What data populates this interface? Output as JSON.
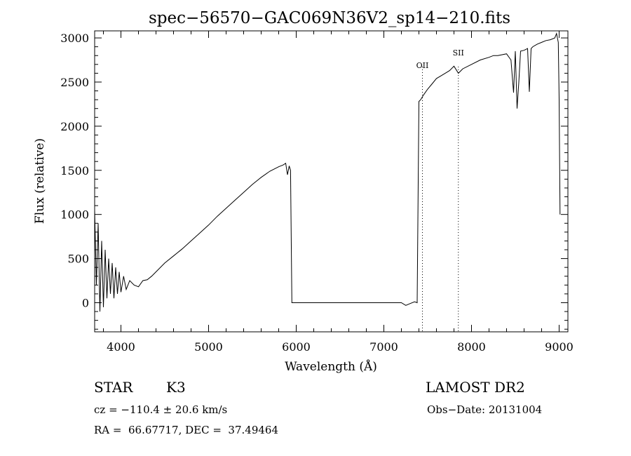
{
  "chart_data": {
    "type": "line",
    "title": "spec−56570−GAC069N36V2_sp14−210.fits",
    "xlabel": "Wavelength (Å)",
    "ylabel": "Flux (relative)",
    "xlim": [
      3700,
      9100
    ],
    "ylim": [
      -330,
      3080
    ],
    "xticks": [
      4000,
      5000,
      6000,
      7000,
      8000,
      9000
    ],
    "yticks": [
      0,
      500,
      1000,
      1500,
      2000,
      2500,
      3000
    ],
    "grid": false,
    "series": [
      {
        "x": [
          3700,
          3720,
          3740,
          3760,
          3780,
          3800,
          3820,
          3840,
          3860,
          3880,
          3900,
          3920,
          3940,
          3960,
          3980,
          4000,
          4030,
          4060,
          4100,
          4150,
          4200,
          4250,
          4300,
          4350,
          4400,
          4500,
          4600,
          4700,
          4800,
          4900,
          5000,
          5100,
          5200,
          5300,
          5400,
          5500,
          5600,
          5700,
          5800,
          5850,
          5880,
          5900,
          5920,
          5935,
          5950,
          6500,
          7000,
          7200,
          7250,
          7300,
          7350,
          7380,
          7400,
          7420,
          7450,
          7500,
          7550,
          7600,
          7650,
          7700,
          7750,
          7800,
          7850,
          7900,
          8000,
          8100,
          8200,
          8250,
          8300,
          8400,
          8450,
          8480,
          8500,
          8520,
          8540,
          8560,
          8600,
          8640,
          8660,
          8680,
          8700,
          8750,
          8800,
          8850,
          8900,
          8950,
          8970,
          8990,
          9000,
          9010
        ],
        "y": [
          1050,
          200,
          900,
          -100,
          700,
          -50,
          600,
          50,
          500,
          100,
          450,
          50,
          400,
          100,
          350,
          120,
          300,
          150,
          250,
          200,
          180,
          250,
          260,
          300,
          350,
          450,
          530,
          610,
          700,
          790,
          880,
          980,
          1070,
          1160,
          1250,
          1340,
          1420,
          1490,
          1540,
          1560,
          1580,
          1450,
          1550,
          1500,
          0,
          0,
          0,
          0,
          -30,
          -10,
          10,
          0,
          2280,
          2300,
          2350,
          2420,
          2480,
          2540,
          2570,
          2600,
          2630,
          2680,
          2600,
          2650,
          2700,
          2750,
          2780,
          2800,
          2800,
          2820,
          2750,
          2380,
          2850,
          2200,
          2500,
          2850,
          2860,
          2880,
          2390,
          2880,
          2900,
          2930,
          2950,
          2970,
          2980,
          3000,
          3050,
          2950,
          2300,
          1000
        ]
      }
    ],
    "annotations": [
      {
        "label": "OII",
        "x": 7440
      },
      {
        "label": "SII",
        "x": 7850
      }
    ]
  },
  "info": {
    "object_class": "STAR",
    "subclass": "K3",
    "survey": "LAMOST DR2",
    "cz": "cz = −110.4 ± 20.6 km/s",
    "obs_date": "Obs−Date: 20131004",
    "coords": "RA =  66.67717, DEC =  37.49464"
  }
}
